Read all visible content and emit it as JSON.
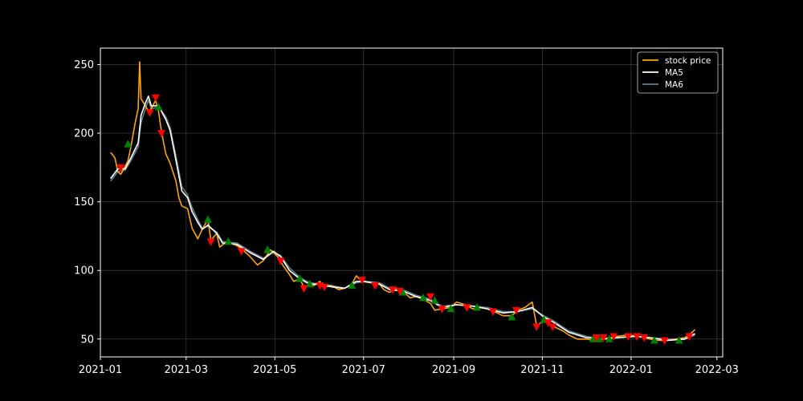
{
  "chart_data": {
    "type": "line",
    "title": "",
    "xlabel": "",
    "ylabel": "",
    "xlim": [
      "2021-01-01",
      "2022-03-05"
    ],
    "ylim": [
      37,
      262
    ],
    "x_ticks": [
      "2021-01",
      "2021-03",
      "2021-05",
      "2021-07",
      "2021-09",
      "2021-11",
      "2022-01",
      "2022-03"
    ],
    "y_ticks": [
      50,
      100,
      150,
      200,
      250
    ],
    "grid": true,
    "legend_position": "top-right",
    "legend": [
      "stock price",
      "MA5",
      "MA6"
    ],
    "series": [
      {
        "name": "stock price",
        "color": "#ffa500",
        "points": [
          [
            "2021-01-08",
            186
          ],
          [
            "2021-01-11",
            182
          ],
          [
            "2021-01-13",
            172
          ],
          [
            "2021-01-15",
            170
          ],
          [
            "2021-01-18",
            176
          ],
          [
            "2021-01-20",
            180
          ],
          [
            "2021-01-22",
            190
          ],
          [
            "2021-01-25",
            208
          ],
          [
            "2021-01-27",
            218
          ],
          [
            "2021-01-28",
            252
          ],
          [
            "2021-01-29",
            225
          ],
          [
            "2021-02-01",
            220
          ],
          [
            "2021-02-03",
            216
          ],
          [
            "2021-02-05",
            218
          ],
          [
            "2021-02-08",
            224
          ],
          [
            "2021-02-10",
            216
          ],
          [
            "2021-02-12",
            201
          ],
          [
            "2021-02-15",
            185
          ],
          [
            "2021-02-18",
            178
          ],
          [
            "2021-02-22",
            165
          ],
          [
            "2021-02-24",
            153
          ],
          [
            "2021-02-26",
            147
          ],
          [
            "2021-03-02",
            145
          ],
          [
            "2021-03-05",
            131
          ],
          [
            "2021-03-09",
            123
          ],
          [
            "2021-03-12",
            130
          ],
          [
            "2021-03-16",
            137
          ],
          [
            "2021-03-18",
            122
          ],
          [
            "2021-03-22",
            127
          ],
          [
            "2021-03-24",
            117
          ],
          [
            "2021-03-29",
            121
          ],
          [
            "2021-04-05",
            118
          ],
          [
            "2021-04-09",
            115
          ],
          [
            "2021-04-14",
            110
          ],
          [
            "2021-04-19",
            104
          ],
          [
            "2021-04-23",
            107
          ],
          [
            "2021-04-28",
            115
          ],
          [
            "2021-05-03",
            110
          ],
          [
            "2021-05-07",
            103
          ],
          [
            "2021-05-11",
            97
          ],
          [
            "2021-05-14",
            92
          ],
          [
            "2021-05-18",
            94
          ],
          [
            "2021-05-21",
            88
          ],
          [
            "2021-05-25",
            90
          ],
          [
            "2021-05-28",
            89
          ],
          [
            "2021-06-01",
            92
          ],
          [
            "2021-06-04",
            88
          ],
          [
            "2021-06-09",
            89
          ],
          [
            "2021-06-14",
            86
          ],
          [
            "2021-06-18",
            87
          ],
          [
            "2021-06-23",
            90
          ],
          [
            "2021-06-26",
            96
          ],
          [
            "2021-06-30",
            92
          ],
          [
            "2021-07-06",
            91
          ],
          [
            "2021-07-12",
            90
          ],
          [
            "2021-07-15",
            86
          ],
          [
            "2021-07-19",
            84
          ],
          [
            "2021-07-23",
            87
          ],
          [
            "2021-07-28",
            85
          ],
          [
            "2021-08-02",
            80
          ],
          [
            "2021-08-06",
            81
          ],
          [
            "2021-08-11",
            79
          ],
          [
            "2021-08-16",
            76
          ],
          [
            "2021-08-19",
            71
          ],
          [
            "2021-08-24",
            72
          ],
          [
            "2021-08-30",
            73
          ],
          [
            "2021-09-03",
            77
          ],
          [
            "2021-09-09",
            75
          ],
          [
            "2021-09-14",
            72
          ],
          [
            "2021-09-20",
            73
          ],
          [
            "2021-09-24",
            72
          ],
          [
            "2021-09-29",
            70
          ],
          [
            "2021-10-05",
            67
          ],
          [
            "2021-10-11",
            67
          ],
          [
            "2021-10-15",
            71
          ],
          [
            "2021-10-20",
            73
          ],
          [
            "2021-10-25",
            77
          ],
          [
            "2021-10-28",
            60
          ],
          [
            "2021-11-02",
            63
          ],
          [
            "2021-11-05",
            62
          ],
          [
            "2021-11-09",
            59
          ],
          [
            "2021-11-15",
            56
          ],
          [
            "2021-11-19",
            53
          ],
          [
            "2021-11-25",
            50
          ],
          [
            "2021-12-01",
            50
          ],
          [
            "2021-12-07",
            49
          ],
          [
            "2021-12-13",
            50
          ],
          [
            "2021-12-17",
            51
          ],
          [
            "2021-12-23",
            52
          ],
          [
            "2021-12-30",
            53
          ],
          [
            "2022-01-05",
            52
          ],
          [
            "2022-01-10",
            51
          ],
          [
            "2022-01-14",
            50
          ],
          [
            "2022-01-20",
            49
          ],
          [
            "2022-01-26",
            49
          ],
          [
            "2022-02-01",
            50
          ],
          [
            "2022-02-07",
            51
          ],
          [
            "2022-02-11",
            54
          ],
          [
            "2022-02-14",
            57
          ]
        ]
      },
      {
        "name": "MA5",
        "color": "#ffffff",
        "points": [
          [
            "2021-01-08",
            167
          ],
          [
            "2021-01-13",
            174
          ],
          [
            "2021-01-18",
            174
          ],
          [
            "2021-01-22",
            182
          ],
          [
            "2021-01-27",
            193
          ],
          [
            "2021-01-29",
            213
          ],
          [
            "2021-02-01",
            222
          ],
          [
            "2021-02-03",
            227
          ],
          [
            "2021-02-05",
            220
          ],
          [
            "2021-02-10",
            220
          ],
          [
            "2021-02-15",
            210
          ],
          [
            "2021-02-18",
            202
          ],
          [
            "2021-02-22",
            180
          ],
          [
            "2021-02-26",
            158
          ],
          [
            "2021-03-02",
            153
          ],
          [
            "2021-03-05",
            143
          ],
          [
            "2021-03-09",
            135
          ],
          [
            "2021-03-12",
            130
          ],
          [
            "2021-03-16",
            133
          ],
          [
            "2021-03-22",
            127
          ],
          [
            "2021-03-26",
            120
          ],
          [
            "2021-04-05",
            119
          ],
          [
            "2021-04-14",
            113
          ],
          [
            "2021-04-23",
            108
          ],
          [
            "2021-04-30",
            114
          ],
          [
            "2021-05-05",
            110
          ],
          [
            "2021-05-11",
            100
          ],
          [
            "2021-05-18",
            94
          ],
          [
            "2021-05-25",
            90
          ],
          [
            "2021-06-01",
            90
          ],
          [
            "2021-06-09",
            88
          ],
          [
            "2021-06-18",
            87
          ],
          [
            "2021-06-26",
            92
          ],
          [
            "2021-07-02",
            92
          ],
          [
            "2021-07-12",
            90
          ],
          [
            "2021-07-19",
            86
          ],
          [
            "2021-07-28",
            85
          ],
          [
            "2021-08-06",
            81
          ],
          [
            "2021-08-16",
            78
          ],
          [
            "2021-08-24",
            73
          ],
          [
            "2021-09-03",
            75
          ],
          [
            "2021-09-14",
            74
          ],
          [
            "2021-09-24",
            72
          ],
          [
            "2021-10-05",
            69
          ],
          [
            "2021-10-15",
            70
          ],
          [
            "2021-10-25",
            73
          ],
          [
            "2021-11-02",
            66
          ],
          [
            "2021-11-09",
            62
          ],
          [
            "2021-11-19",
            55
          ],
          [
            "2021-12-01",
            51
          ],
          [
            "2021-12-13",
            50
          ],
          [
            "2021-12-23",
            51
          ],
          [
            "2022-01-05",
            52
          ],
          [
            "2022-01-14",
            51
          ],
          [
            "2022-01-26",
            49
          ],
          [
            "2022-02-07",
            50
          ],
          [
            "2022-02-14",
            54
          ]
        ]
      },
      {
        "name": "MA6",
        "color": "#5f7f8f",
        "points": [
          [
            "2021-01-08",
            165
          ],
          [
            "2021-01-13",
            172
          ],
          [
            "2021-01-18",
            173
          ],
          [
            "2021-01-22",
            180
          ],
          [
            "2021-01-27",
            190
          ],
          [
            "2021-01-29",
            208
          ],
          [
            "2021-02-01",
            218
          ],
          [
            "2021-02-03",
            224
          ],
          [
            "2021-02-05",
            218
          ],
          [
            "2021-02-10",
            219
          ],
          [
            "2021-02-15",
            212
          ],
          [
            "2021-02-18",
            204
          ],
          [
            "2021-02-22",
            183
          ],
          [
            "2021-02-26",
            161
          ],
          [
            "2021-03-02",
            155
          ],
          [
            "2021-03-05",
            146
          ],
          [
            "2021-03-09",
            137
          ],
          [
            "2021-03-12",
            131
          ],
          [
            "2021-03-16",
            132
          ],
          [
            "2021-03-22",
            128
          ],
          [
            "2021-03-26",
            121
          ],
          [
            "2021-04-05",
            120
          ],
          [
            "2021-04-14",
            114
          ],
          [
            "2021-04-23",
            109
          ],
          [
            "2021-04-30",
            113
          ],
          [
            "2021-05-05",
            111
          ],
          [
            "2021-05-11",
            102
          ],
          [
            "2021-05-18",
            95
          ],
          [
            "2021-05-25",
            91
          ],
          [
            "2021-06-01",
            90
          ],
          [
            "2021-06-09",
            89
          ],
          [
            "2021-06-18",
            87
          ],
          [
            "2021-06-26",
            91
          ],
          [
            "2021-07-02",
            92
          ],
          [
            "2021-07-12",
            91
          ],
          [
            "2021-07-19",
            87
          ],
          [
            "2021-07-28",
            86
          ],
          [
            "2021-08-06",
            82
          ],
          [
            "2021-08-16",
            79
          ],
          [
            "2021-08-24",
            74
          ],
          [
            "2021-09-03",
            75
          ],
          [
            "2021-09-14",
            74
          ],
          [
            "2021-09-24",
            73
          ],
          [
            "2021-10-05",
            70
          ],
          [
            "2021-10-15",
            70
          ],
          [
            "2021-10-25",
            72
          ],
          [
            "2021-11-02",
            67
          ],
          [
            "2021-11-09",
            63
          ],
          [
            "2021-11-19",
            56
          ],
          [
            "2021-12-01",
            52
          ],
          [
            "2021-12-13",
            50
          ],
          [
            "2021-12-23",
            51
          ],
          [
            "2022-01-05",
            52
          ],
          [
            "2022-01-14",
            51
          ],
          [
            "2022-01-26",
            50
          ],
          [
            "2022-02-07",
            50
          ],
          [
            "2022-02-14",
            53
          ]
        ]
      }
    ],
    "buy_markers": {
      "color": "#008000",
      "points": [
        [
          "2021-01-20",
          192
        ],
        [
          "2021-02-10",
          219
        ],
        [
          "2021-03-16",
          137
        ],
        [
          "2021-03-30",
          121
        ],
        [
          "2021-04-26",
          115
        ],
        [
          "2021-05-18",
          94
        ],
        [
          "2021-05-25",
          90
        ],
        [
          "2021-06-23",
          89
        ],
        [
          "2021-07-28",
          84
        ],
        [
          "2021-08-11",
          80
        ],
        [
          "2021-08-19",
          78
        ],
        [
          "2021-08-30",
          72
        ],
        [
          "2021-09-17",
          73
        ],
        [
          "2021-10-11",
          66
        ],
        [
          "2021-11-02",
          64
        ],
        [
          "2021-12-06",
          50
        ],
        [
          "2021-12-10",
          50
        ],
        [
          "2021-12-17",
          50
        ],
        [
          "2022-01-17",
          49
        ],
        [
          "2022-02-03",
          49
        ]
      ]
    },
    "sell_markers": {
      "color": "#ff0000",
      "points": [
        [
          "2021-01-15",
          175
        ],
        [
          "2021-02-04",
          215
        ],
        [
          "2021-02-08",
          226
        ],
        [
          "2021-02-12",
          200
        ],
        [
          "2021-03-18",
          121
        ],
        [
          "2021-04-08",
          114
        ],
        [
          "2021-05-05",
          107
        ],
        [
          "2021-05-21",
          87
        ],
        [
          "2021-06-01",
          89
        ],
        [
          "2021-06-04",
          88
        ],
        [
          "2021-06-30",
          93
        ],
        [
          "2021-07-09",
          89
        ],
        [
          "2021-07-21",
          86
        ],
        [
          "2021-07-26",
          85
        ],
        [
          "2021-08-16",
          81
        ],
        [
          "2021-08-24",
          72
        ],
        [
          "2021-09-10",
          73
        ],
        [
          "2021-09-28",
          70
        ],
        [
          "2021-10-14",
          71
        ],
        [
          "2021-10-28",
          59
        ],
        [
          "2021-11-05",
          62
        ],
        [
          "2021-11-08",
          59
        ],
        [
          "2021-12-08",
          51
        ],
        [
          "2021-12-13",
          51
        ],
        [
          "2021-12-20",
          52
        ],
        [
          "2021-12-30",
          52
        ],
        [
          "2022-01-05",
          52
        ],
        [
          "2022-01-10",
          51
        ],
        [
          "2022-01-24",
          49
        ],
        [
          "2022-02-10",
          52
        ]
      ]
    }
  }
}
